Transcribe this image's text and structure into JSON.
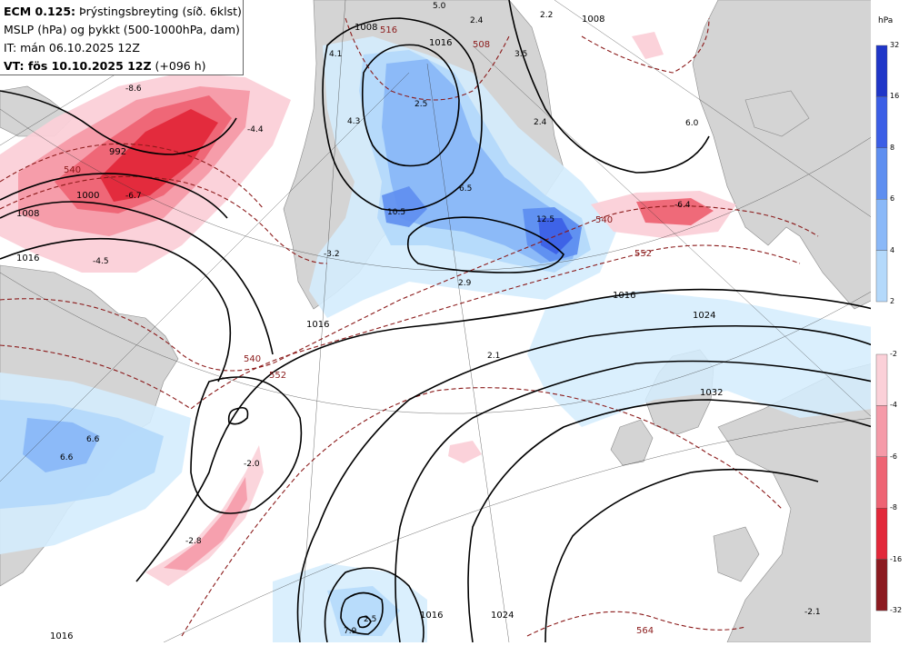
{
  "header": {
    "line1_bold": "ECM 0.125:",
    "line1_rest": " Þrýstingsbreyting (síð. 6klst)",
    "line2": "MSLP (hPa) og þykkt (500-1000hPa, dam)",
    "line3": "IT: mán 06.10.2025 12Z",
    "line4_bold": "VT: fös 10.10.2025 12Z",
    "line4_rest": " (+096 h)"
  },
  "legend": {
    "unit": "hPa",
    "positive": [
      {
        "label": "32",
        "color": "#1f36c8"
      },
      {
        "label": "16",
        "color": "#3b5ee6"
      },
      {
        "label": "8",
        "color": "#5e8ef0"
      },
      {
        "label": "6",
        "color": "#8ab8f8"
      },
      {
        "label": "4",
        "color": "#b4d9fb"
      },
      {
        "label": "2",
        "color": "#d4ecfd"
      }
    ],
    "negative": [
      {
        "label": "-2",
        "color": "#fbd0d8"
      },
      {
        "label": "-4",
        "color": "#f59aa8"
      },
      {
        "label": "-6",
        "color": "#ee6474"
      },
      {
        "label": "-8",
        "color": "#e2283a"
      },
      {
        "label": "-16",
        "color": "#c41422"
      },
      {
        "label": "-32",
        "color": "#8c1a20"
      }
    ]
  },
  "map": {
    "colors": {
      "land": "#d4d4d4",
      "ocean": "#ffffff",
      "isobar": "#000000",
      "thickness": "#8b1a1a"
    },
    "isobar_labels": [
      "1008",
      "1016",
      "1016",
      "1000",
      "992",
      "1008",
      "1016",
      "1024",
      "1032",
      "1016",
      "1024",
      "1016",
      "1016",
      "1008"
    ],
    "thickness_labels": [
      "540",
      "540",
      "552",
      "540",
      "552",
      "564",
      "516",
      "508"
    ],
    "change_labels": [
      "-8.6",
      "-4.4",
      "-6.7",
      "-4.5",
      "4.1",
      "4.3",
      "2.5",
      "6.5",
      "10.5",
      "12.5",
      "2.9",
      "2.1",
      "-6.4",
      "6.0",
      "3.5",
      "2.4",
      "2.4",
      "2.2",
      "5.0",
      "6.6",
      "6.6",
      "-2.0",
      "-2.8",
      "-2.1",
      "2.5",
      "7.9",
      "-3.2"
    ]
  }
}
